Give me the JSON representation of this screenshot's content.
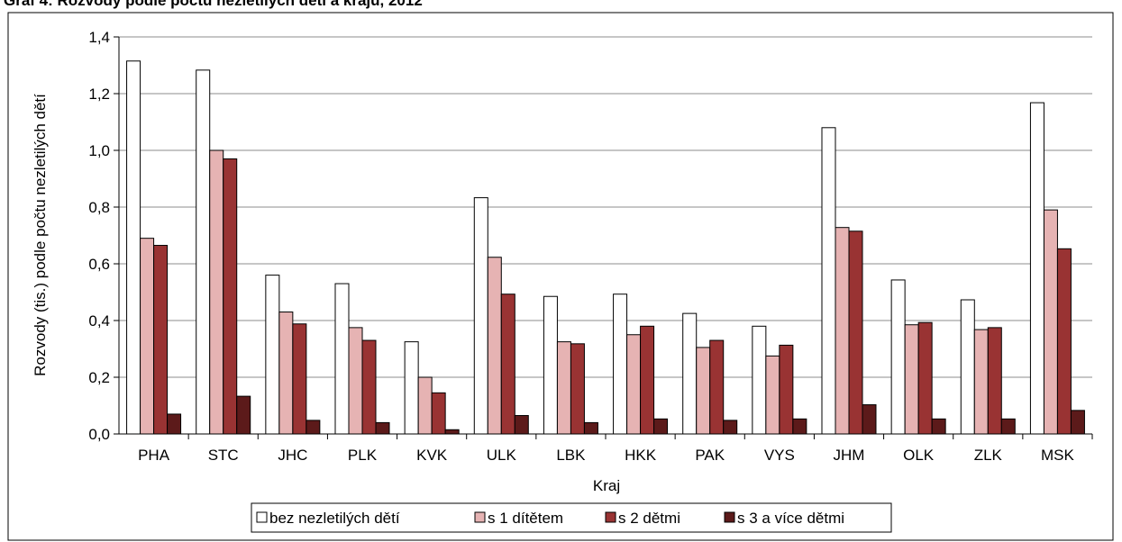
{
  "chart_data": {
    "type": "bar",
    "title": "Graf 4: Rozvody podle počtu nezletilých dětí a krajů, 2012",
    "xlabel": "Kraj",
    "ylabel": "Rozvody (tis.) podle počtu nezletilých dětí",
    "ylim": [
      0,
      1.4
    ],
    "yticks": [
      "0,0",
      "0,2",
      "0,4",
      "0,6",
      "0,8",
      "1,0",
      "1,2",
      "1,4"
    ],
    "grid": true,
    "legend_position": "bottom",
    "categories": [
      "PHA",
      "STC",
      "JHC",
      "PLK",
      "KVK",
      "ULK",
      "LBK",
      "HKK",
      "PAK",
      "VYS",
      "JHM",
      "OLK",
      "ZLK",
      "MSK"
    ],
    "series": [
      {
        "name": "bez nezletilých dětí",
        "color": "#ffffff",
        "values": [
          1.315,
          1.283,
          0.56,
          0.53,
          0.325,
          0.833,
          0.485,
          0.493,
          0.425,
          0.38,
          1.08,
          0.543,
          0.473,
          1.168
        ]
      },
      {
        "name": "s 1 dítětem",
        "color": "#e6b3b3",
        "values": [
          0.69,
          1.0,
          0.43,
          0.375,
          0.2,
          0.623,
          0.325,
          0.35,
          0.305,
          0.275,
          0.728,
          0.385,
          0.368,
          0.79
        ]
      },
      {
        "name": "s 2 dětmi",
        "color": "#993333",
        "values": [
          0.665,
          0.97,
          0.388,
          0.33,
          0.145,
          0.493,
          0.318,
          0.38,
          0.33,
          0.313,
          0.715,
          0.393,
          0.375,
          0.653
        ]
      },
      {
        "name": "s 3 a více dětmi",
        "color": "#5c1a1a",
        "values": [
          0.07,
          0.133,
          0.048,
          0.04,
          0.015,
          0.065,
          0.04,
          0.053,
          0.048,
          0.053,
          0.103,
          0.053,
          0.053,
          0.083
        ]
      }
    ]
  }
}
